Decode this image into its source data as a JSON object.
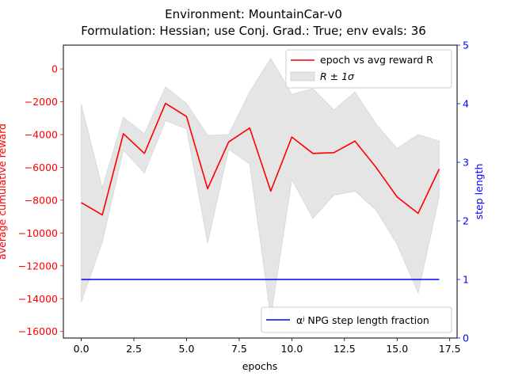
{
  "chart_data": {
    "type": "line",
    "title_line1": "Environment: MountainCar-v0",
    "title_line2": "Formulation: Hessian; use Conj. Grad.: True; env evals: 36",
    "xlabel": "epochs",
    "ylabel_left": "average cumulative reward",
    "ylabel_right": "step length",
    "xlim": [
      -0.85,
      17.85
    ],
    "ylim_left": [
      -16400,
      1450
    ],
    "ylim_right": [
      0,
      5
    ],
    "x_ticks": [
      0.0,
      2.5,
      5.0,
      7.5,
      10.0,
      12.5,
      15.0,
      17.5
    ],
    "x_tick_labels": [
      "0.0",
      "2.5",
      "5.0",
      "7.5",
      "10.0",
      "12.5",
      "15.0",
      "17.5"
    ],
    "y_left_ticks": [
      0,
      -2000,
      -4000,
      -6000,
      -8000,
      -10000,
      -12000,
      -14000,
      -16000
    ],
    "y_left_tick_labels": [
      "0",
      "−2000",
      "−4000",
      "−6000",
      "−8000",
      "−10000",
      "−12000",
      "−14000",
      "−16000"
    ],
    "y_right_ticks": [
      0,
      1,
      2,
      3,
      4,
      5
    ],
    "y_right_tick_labels": [
      "0",
      "1",
      "2",
      "3",
      "4",
      "5"
    ],
    "x": [
      0,
      1,
      2,
      3,
      4,
      5,
      6,
      7,
      8,
      9,
      10,
      11,
      12,
      13,
      14,
      15,
      16,
      17
    ],
    "series": [
      {
        "name": "epoch vs avg reward R",
        "axis": "left",
        "color": "#ff0000",
        "values": [
          -8150,
          -8900,
          -3950,
          -5150,
          -2100,
          -2900,
          -7300,
          -4450,
          -3600,
          -7450,
          -4150,
          -5150,
          -5100,
          -4400,
          -6000,
          -7800,
          -8800,
          -6100
        ]
      },
      {
        "name": "αʲ NPG step length fraction",
        "axis": "right",
        "color": "#0000ff",
        "values": [
          1,
          1,
          1,
          1,
          1,
          1,
          1,
          1,
          1,
          1,
          1,
          1,
          1,
          1,
          1,
          1,
          1,
          1
        ]
      }
    ],
    "band": {
      "name": "R ± 1σ",
      "color": "#e5e5e5",
      "upper": [
        -2150,
        -7250,
        -2950,
        -3950,
        -1100,
        -2100,
        -4050,
        -4000,
        -1400,
        650,
        -1550,
        -1200,
        -2500,
        -1400,
        -3350,
        -4850,
        -4000,
        -4400
      ],
      "lower": [
        -14200,
        -10550,
        -4950,
        -6350,
        -3150,
        -3650,
        -10600,
        -4900,
        -5800,
        -15150,
        -6750,
        -9100,
        -7700,
        -7450,
        -8600,
        -10700,
        -13650,
        -7800
      ]
    },
    "legend_top_position": "upper-right",
    "legend_bottom_position": "lower-right",
    "grid": false
  }
}
